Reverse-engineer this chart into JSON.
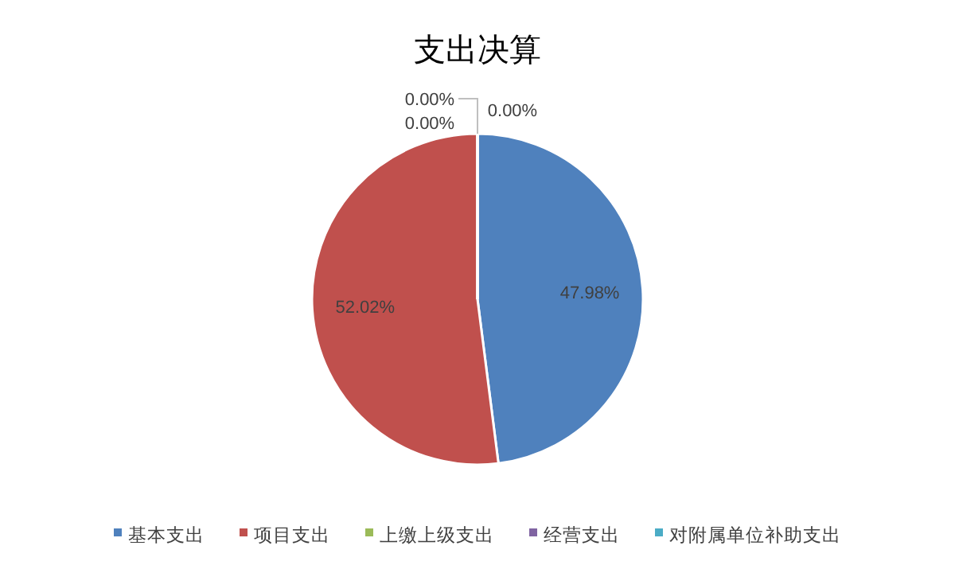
{
  "chart_data": {
    "type": "pie",
    "title": "支出决算",
    "categories": [
      "基本支出",
      "项目支出",
      "上缴上级支出",
      "经营支出",
      "对附属单位补助支出"
    ],
    "values": [
      47.98,
      52.02,
      0,
      0,
      0
    ],
    "value_labels": [
      "47.98%",
      "52.02%",
      "0.00%",
      "0.00%",
      "0.00%"
    ],
    "colors": [
      "#4f81bd",
      "#c0504d",
      "#9bbb59",
      "#8064a2",
      "#4bacc6"
    ],
    "legend": "bottom"
  }
}
